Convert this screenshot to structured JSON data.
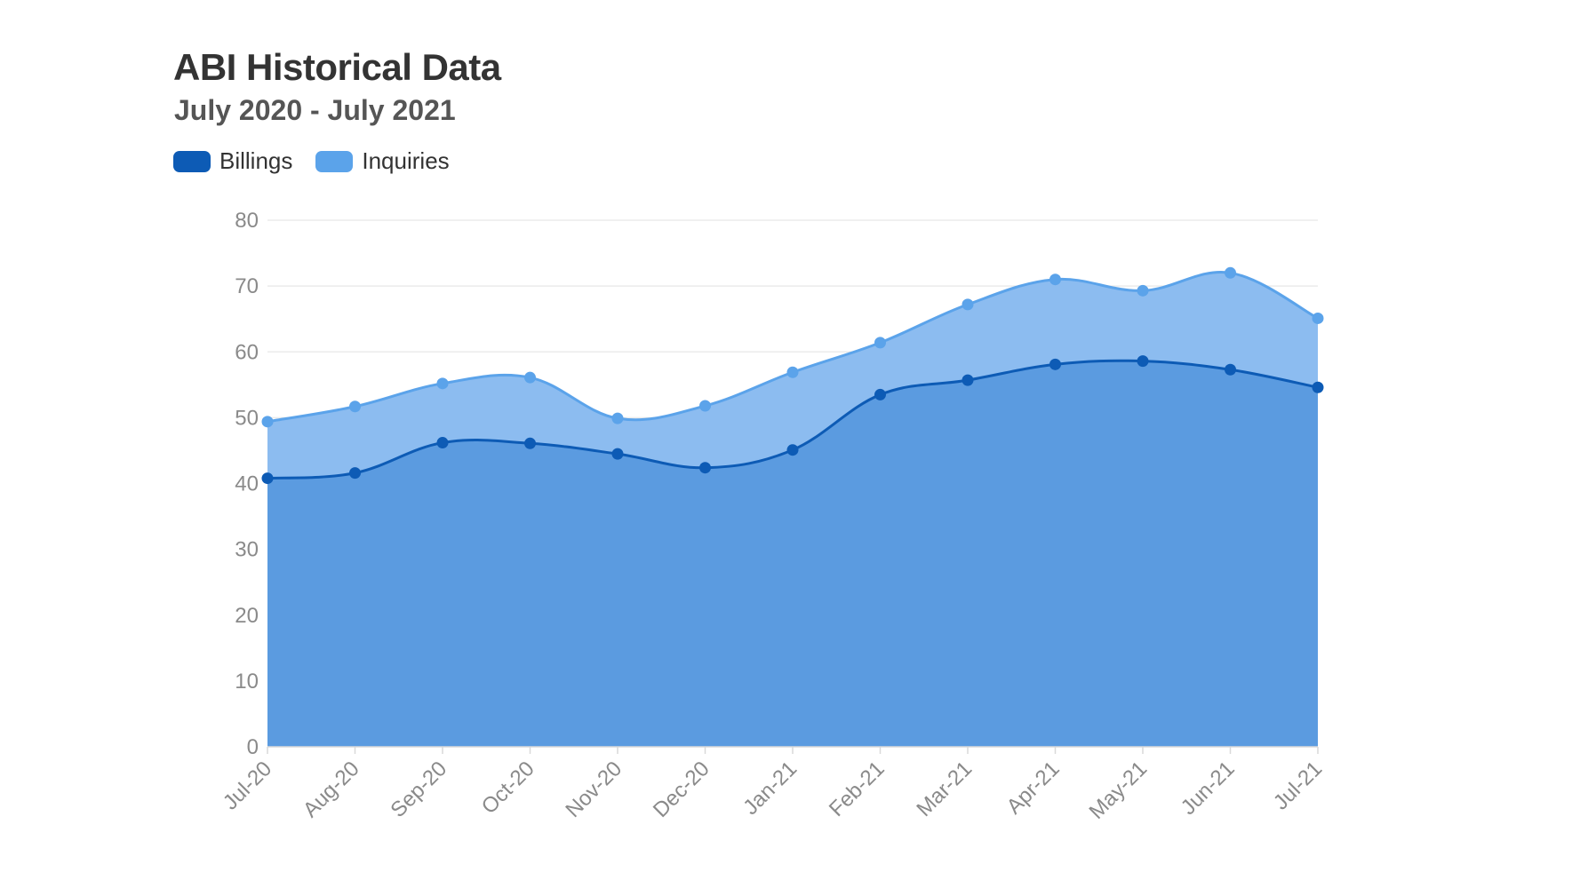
{
  "header": {
    "title": "ABI Historical Data",
    "subtitle": "July 2020 - July 2021"
  },
  "chart_data": {
    "type": "area",
    "title": "ABI Historical Data",
    "subtitle": "July 2020 - July 2021",
    "categories": [
      "Jul-20",
      "Aug-20",
      "Sep-20",
      "Oct-20",
      "Nov-20",
      "Dec-20",
      "Jan-21",
      "Feb-21",
      "Mar-21",
      "Apr-21",
      "May-21",
      "Jun-21",
      "Jul-21"
    ],
    "series": [
      {
        "name": "Billings",
        "color": "#0d5bb5",
        "fill": "#5b9be0",
        "values": [
          40.8,
          41.6,
          46.2,
          46.1,
          44.5,
          42.4,
          45.1,
          53.5,
          55.7,
          58.1,
          58.6,
          57.3,
          54.6
        ]
      },
      {
        "name": "Inquiries",
        "color": "#5ba3ea",
        "fill": "#8cbcf0",
        "values": [
          49.4,
          51.7,
          55.2,
          56.1,
          49.9,
          51.8,
          56.9,
          61.4,
          67.2,
          71.0,
          69.3,
          72.0,
          65.1
        ]
      }
    ],
    "ylim": [
      0,
      80
    ],
    "yticks": [
      0,
      10,
      20,
      30,
      40,
      50,
      60,
      70,
      80
    ],
    "xlabel": "",
    "ylabel": "",
    "grid": true,
    "legend": "top-left"
  }
}
